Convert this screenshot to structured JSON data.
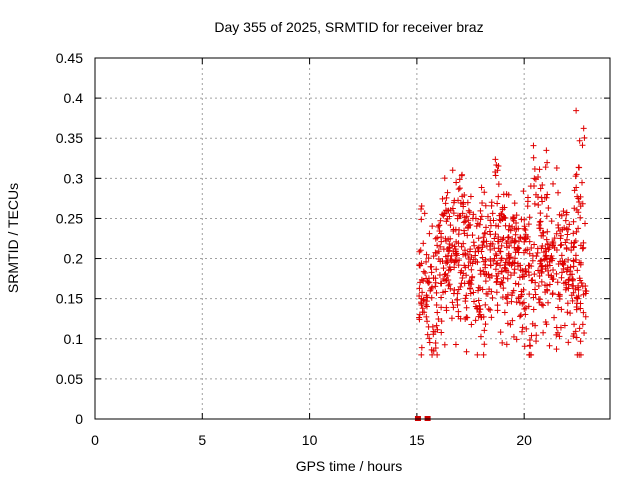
{
  "chart_data": {
    "type": "scatter",
    "title": "Day 355 of 2025, SRMTID for receiver braz",
    "xlabel": "GPS time / hours",
    "ylabel": "SRMTID / TECUs",
    "xlim": [
      0,
      24
    ],
    "ylim": [
      0,
      0.45
    ],
    "xticks": [
      0,
      5,
      10,
      15,
      20
    ],
    "xtick_labels": [
      "0",
      "5",
      "10",
      "15",
      "20"
    ],
    "yticks": [
      0,
      0.05,
      0.1,
      0.15,
      0.2,
      0.25,
      0.3,
      0.35,
      0.4,
      0.45
    ],
    "ytick_labels": [
      "0",
      "0.05",
      "0.1",
      "0.15",
      "0.2",
      "0.25",
      "0.3",
      "0.35",
      "0.4",
      "0.45"
    ],
    "grid": true,
    "marker": "plus",
    "color": "#e00000",
    "zero_marker_color": "#cc0000",
    "zero_points": {
      "x": [
        15.05,
        15.5
      ],
      "y": [
        0,
        0
      ]
    },
    "x_range_points": [
      15.1,
      22.9
    ],
    "seed": 355,
    "n_points": 900
  }
}
